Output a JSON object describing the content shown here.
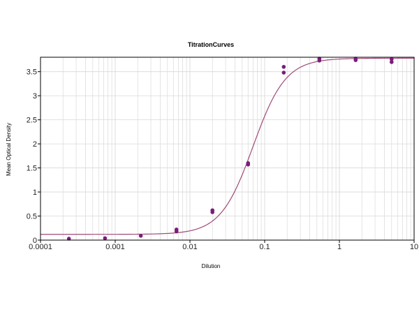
{
  "chart_data": {
    "type": "scatter",
    "title": "TitrationCurves",
    "xlabel": "Dilution",
    "ylabel": "Mean Optical Density",
    "x_scale": "log",
    "xlim": [
      0.0001,
      10
    ],
    "ylim": [
      0,
      3.8
    ],
    "x_ticks": [
      {
        "value": 0.0001,
        "label": "0.0001"
      },
      {
        "value": 0.001,
        "label": "0.001"
      },
      {
        "value": 0.01,
        "label": "0.01"
      },
      {
        "value": 0.1,
        "label": "0.1"
      },
      {
        "value": 1,
        "label": "1"
      },
      {
        "value": 10,
        "label": "10"
      }
    ],
    "y_ticks": [
      {
        "value": 0,
        "label": "0"
      },
      {
        "value": 0.5,
        "label": "0.5"
      },
      {
        "value": 1,
        "label": "1"
      },
      {
        "value": 1.5,
        "label": "1.5"
      },
      {
        "value": 2,
        "label": "2"
      },
      {
        "value": 2.5,
        "label": "2.5"
      },
      {
        "value": 3,
        "label": "3"
      },
      {
        "value": 3.5,
        "label": "3.5"
      }
    ],
    "grid": true,
    "series": [
      {
        "points": [
          [
            0.00024,
            0.03
          ],
          [
            0.00073,
            0.04
          ],
          [
            0.0022,
            0.09
          ],
          [
            0.0066,
            0.18
          ],
          [
            0.0066,
            0.22
          ],
          [
            0.02,
            0.58
          ],
          [
            0.02,
            0.62
          ],
          [
            0.06,
            1.57
          ],
          [
            0.06,
            1.6
          ],
          [
            0.18,
            3.48
          ],
          [
            0.18,
            3.6
          ],
          [
            0.54,
            3.73
          ],
          [
            0.54,
            3.77
          ],
          [
            1.65,
            3.74
          ],
          [
            1.65,
            3.77
          ],
          [
            5,
            3.7
          ],
          [
            5,
            3.76
          ]
        ]
      }
    ],
    "fit_curve": {
      "model": "4PL",
      "bottom": 0.12,
      "top": 3.78,
      "ec50": 0.07,
      "hill": 2.0
    },
    "colors": {
      "points": "#7b1d7b",
      "curve": "#a04a78",
      "grid": "#d9d9d9",
      "axis": "#000000"
    }
  }
}
